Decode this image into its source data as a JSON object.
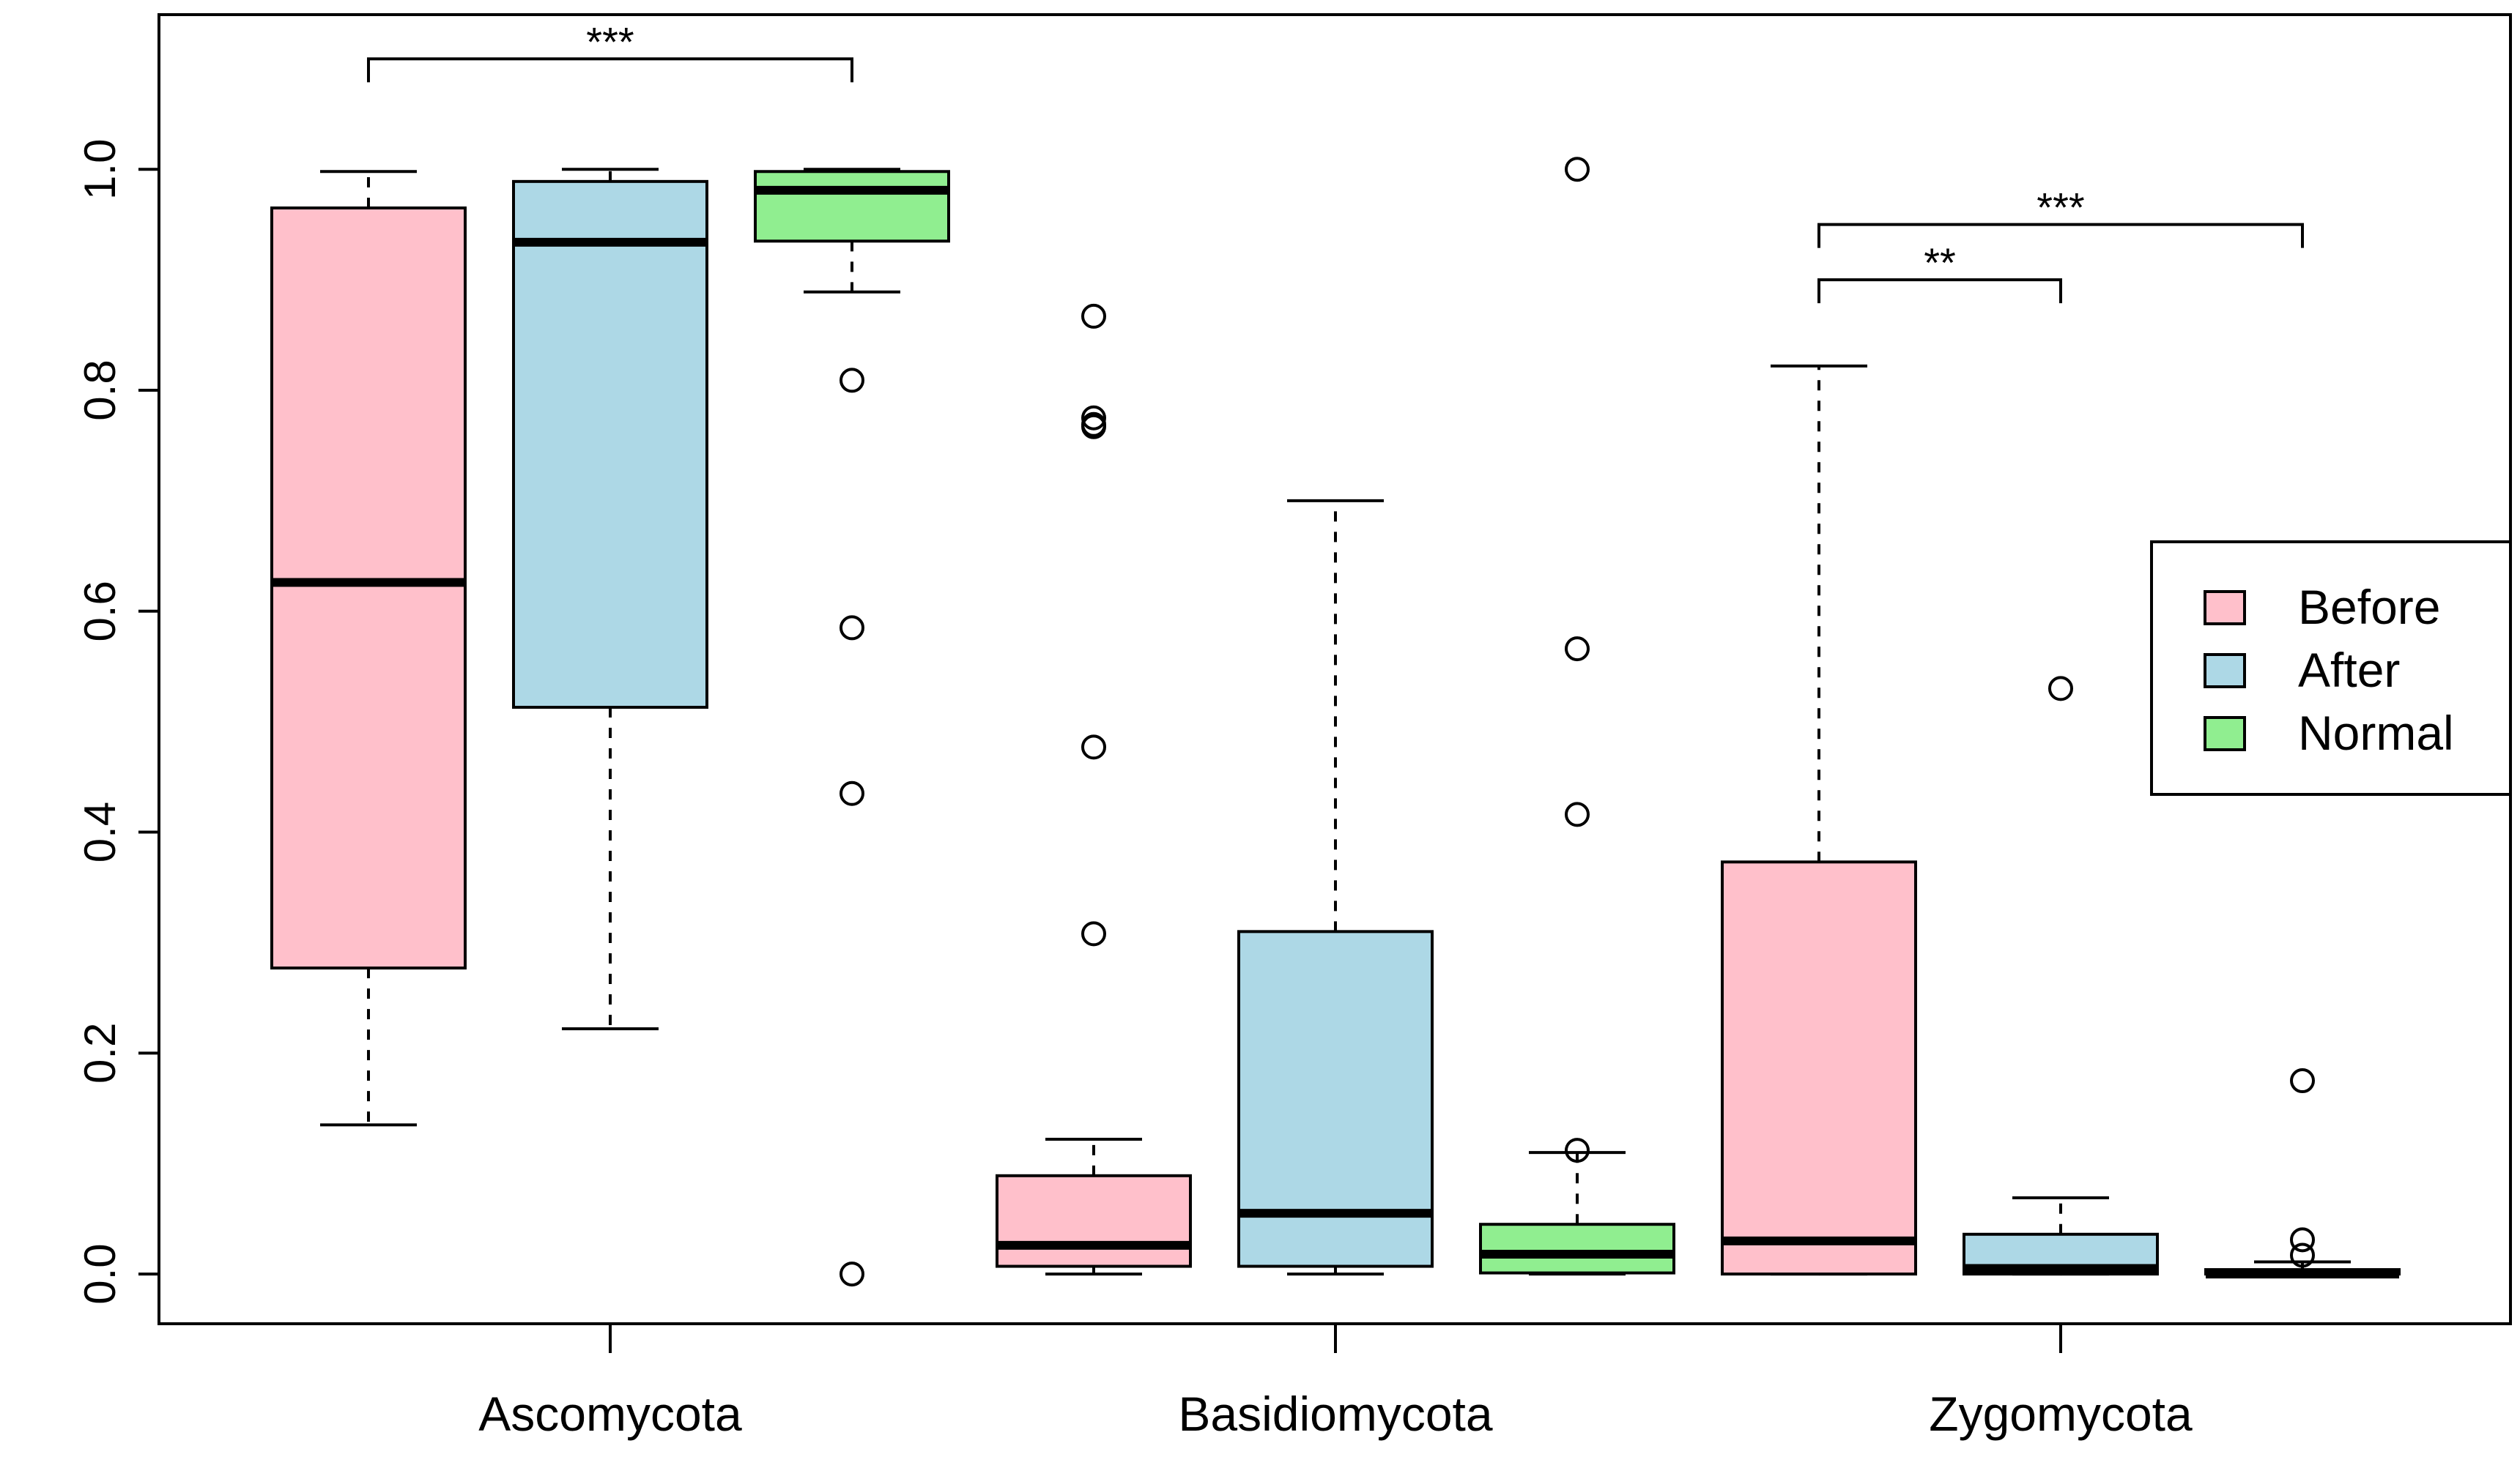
{
  "chart_data": {
    "type": "boxplot",
    "title": "",
    "xlabel": "",
    "ylabel": "",
    "ylim": [
      -0.045,
      1.14
    ],
    "yticks": [
      0.0,
      0.2,
      0.4,
      0.6,
      0.8,
      1.0
    ],
    "ytick_labels": [
      "0.0",
      "0.2",
      "0.4",
      "0.6",
      "0.8",
      "1.0"
    ],
    "categories": [
      "Ascomycota",
      "Basidiomycota",
      "Zygomycota"
    ],
    "series": [
      {
        "name": "Before",
        "color": "#FFC0CB"
      },
      {
        "name": "After",
        "color": "#ADD8E6"
      },
      {
        "name": "Normal",
        "color": "#90EE90"
      }
    ],
    "boxes": [
      {
        "category": "Ascomycota",
        "group": "Before",
        "whisker_low": 0.135,
        "q1": 0.277,
        "median": 0.626,
        "q3": 0.965,
        "whisker_high": 0.998,
        "outliers": []
      },
      {
        "category": "Ascomycota",
        "group": "After",
        "whisker_low": 0.222,
        "q1": 0.513,
        "median": 0.934,
        "q3": 0.989,
        "whisker_high": 1.0,
        "outliers": []
      },
      {
        "category": "Ascomycota",
        "group": "Normal",
        "whisker_low": 0.889,
        "q1": 0.935,
        "median": 0.981,
        "q3": 0.998,
        "whisker_high": 1.0,
        "outliers": [
          0.809,
          0.585,
          0.435,
          0.0
        ]
      },
      {
        "category": "Basidiomycota",
        "group": "Before",
        "whisker_low": 0.0,
        "q1": 0.007,
        "median": 0.026,
        "q3": 0.089,
        "whisker_high": 0.122,
        "outliers": [
          0.867,
          0.775,
          0.769,
          0.767,
          0.477,
          0.308
        ]
      },
      {
        "category": "Basidiomycota",
        "group": "After",
        "whisker_low": 0.0,
        "q1": 0.007,
        "median": 0.055,
        "q3": 0.31,
        "whisker_high": 0.7,
        "outliers": []
      },
      {
        "category": "Basidiomycota",
        "group": "Normal",
        "whisker_low": 0.0,
        "q1": 0.001,
        "median": 0.018,
        "q3": 0.045,
        "whisker_high": 0.11,
        "outliers": [
          1.0,
          0.566,
          0.416,
          0.112
        ]
      },
      {
        "category": "Zygomycota",
        "group": "Before",
        "whisker_low": 0.0,
        "q1": 0.0,
        "median": 0.03,
        "q3": 0.373,
        "whisker_high": 0.822,
        "outliers": []
      },
      {
        "category": "Zygomycota",
        "group": "After",
        "whisker_low": 0.0,
        "q1": 0.0,
        "median": 0.005,
        "q3": 0.036,
        "whisker_high": 0.069,
        "outliers": [
          0.53
        ]
      },
      {
        "category": "Zygomycota",
        "group": "Normal",
        "whisker_low": 0.0,
        "q1": 0.0,
        "median": 0.0,
        "q3": 0.004,
        "whisker_high": 0.011,
        "outliers": [
          0.175,
          0.031,
          0.017
        ]
      }
    ],
    "significance": [
      {
        "from_box": 0,
        "to_box": 2,
        "level": 1.1,
        "label": "***"
      },
      {
        "from_box": 6,
        "to_box": 7,
        "level": 0.9,
        "label": "**"
      },
      {
        "from_box": 6,
        "to_box": 8,
        "level": 0.95,
        "label": "***"
      }
    ],
    "legend": {
      "placement": "right",
      "entries": [
        "Before",
        "After",
        "Normal"
      ]
    }
  }
}
